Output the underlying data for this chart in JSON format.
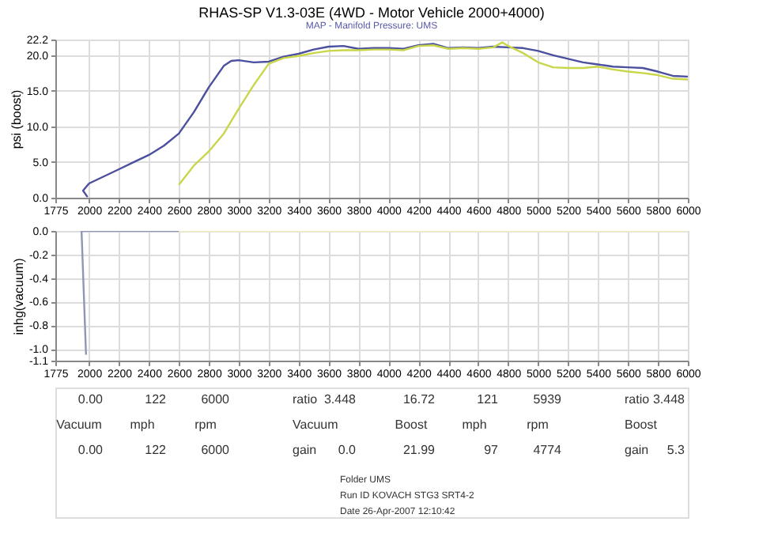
{
  "chart_data": [
    {
      "type": "line",
      "title": "RHAS-SP V1.3-03E  (4WD - Motor Vehicle 2000+4000)",
      "subtitle": "MAP - Manifold Pressure: UMS",
      "ylabel": "psi (boost)",
      "xlim": [
        1775,
        6000
      ],
      "xticks": [
        1775,
        2000,
        2200,
        2400,
        2600,
        2800,
        3000,
        3200,
        3400,
        3600,
        3800,
        4000,
        4200,
        4400,
        4600,
        4800,
        5000,
        5200,
        5400,
        5600,
        5800,
        6000
      ],
      "ylim": [
        0,
        22.2
      ],
      "yticks": [
        {
          "value": 0,
          "label": "0.0"
        },
        {
          "value": 5,
          "label": "5.0"
        },
        {
          "value": 10,
          "label": "10.0"
        },
        {
          "value": 15,
          "label": "15.0"
        },
        {
          "value": 20,
          "label": "20.0"
        },
        22.2
      ],
      "grid": true,
      "series": [
        {
          "color": "#4a4f9e",
          "x": [
            1990,
            1960,
            2000,
            2100,
            2200,
            2300,
            2400,
            2500,
            2600,
            2700,
            2800,
            2900,
            2950,
            3000,
            3100,
            3200,
            3300,
            3400,
            3500,
            3600,
            3700,
            3800,
            3900,
            4000,
            4100,
            4200,
            4300,
            4400,
            4500,
            4600,
            4700,
            4800,
            4900,
            5000,
            5100,
            5200,
            5300,
            5400,
            5500,
            5600,
            5700,
            5800,
            5900,
            6000
          ],
          "values": [
            0.1,
            1.0,
            2.0,
            3.0,
            4.0,
            5.0,
            6.0,
            7.3,
            9.0,
            12.0,
            15.5,
            18.5,
            19.2,
            19.3,
            19.0,
            19.1,
            19.8,
            20.2,
            20.8,
            21.2,
            21.3,
            20.9,
            21.0,
            21.0,
            20.9,
            21.4,
            21.6,
            21.0,
            21.1,
            21.0,
            21.2,
            21.1,
            21.0,
            20.6,
            20.0,
            19.5,
            19.0,
            18.7,
            18.4,
            18.3,
            18.2,
            17.7,
            17.1,
            17.0
          ]
        },
        {
          "color": "#c9d64a",
          "x": [
            2600,
            2700,
            2800,
            2900,
            3000,
            3100,
            3200,
            3300,
            3400,
            3500,
            3600,
            3700,
            3800,
            3900,
            4000,
            4100,
            4200,
            4300,
            4400,
            4500,
            4600,
            4700,
            4760,
            4800,
            4900,
            5000,
            5100,
            5200,
            5300,
            5400,
            5500,
            5600,
            5700,
            5800,
            5900,
            6000
          ],
          "values": [
            1.8,
            4.5,
            6.5,
            9.0,
            12.5,
            15.8,
            18.8,
            19.6,
            19.9,
            20.3,
            20.6,
            20.7,
            20.7,
            20.8,
            20.8,
            20.7,
            21.3,
            21.4,
            20.9,
            21.0,
            20.9,
            21.1,
            21.8,
            21.3,
            20.3,
            19.0,
            18.3,
            18.2,
            18.2,
            18.4,
            18.0,
            17.7,
            17.5,
            17.2,
            16.7,
            16.6
          ]
        }
      ]
    },
    {
      "type": "line",
      "ylabel": "inhg(vacuum)",
      "xlim": [
        1775,
        6000
      ],
      "xticks": [
        1775,
        2000,
        2200,
        2400,
        2600,
        2800,
        3000,
        3200,
        3400,
        3600,
        3800,
        4000,
        4200,
        4400,
        4600,
        4800,
        5000,
        5200,
        5400,
        5600,
        5800,
        6000
      ],
      "ylim": [
        -1.1,
        0.0
      ],
      "yticks": [
        {
          "value": 0,
          "label": "0.0"
        },
        -0.2,
        -0.4,
        -0.6,
        -0.8,
        {
          "value": -1,
          "label": "-1.0"
        },
        -1.1
      ],
      "grid": true,
      "series": [
        {
          "color": "#8f97b8",
          "x": [
            2600,
            1950,
            1980
          ],
          "values": [
            0.0,
            0.0,
            -1.05
          ]
        },
        {
          "color": "#f3efc0",
          "x": [
            2600,
            6000
          ],
          "values": [
            0.0,
            0.0
          ]
        }
      ],
      "annotations": [
        "0.00",
        "122",
        "6000",
        "ratio",
        "3.448",
        "16.72",
        "121",
        "5939",
        "ratio",
        "3.448",
        "Vacuum",
        "mph",
        "rpm",
        "Vacuum",
        "Boost",
        "mph",
        "rpm",
        "Boost",
        "0.00",
        "122",
        "6000",
        "gain",
        "0.0",
        "21.99",
        "97",
        "4774",
        "gain",
        "5.3",
        "Folder UMS",
        "Run ID KOVACH STG3 SRT4-2",
        "Date 26-Apr-2007 12:10:42"
      ]
    }
  ]
}
